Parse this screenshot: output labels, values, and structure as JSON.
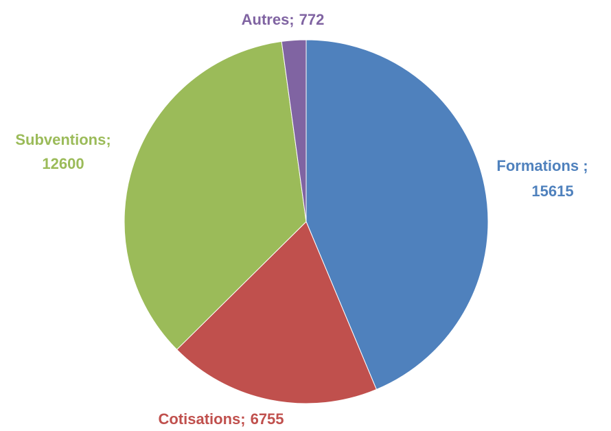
{
  "chart_data": {
    "type": "pie",
    "categories": [
      "Formations ;",
      "Cotisations;",
      "Subventions;",
      "Autres;"
    ],
    "values": [
      15615,
      6755,
      12600,
      772
    ],
    "colors": [
      "#4f81bd",
      "#c0504d",
      "#9bbb59",
      "#8064a2"
    ]
  }
}
